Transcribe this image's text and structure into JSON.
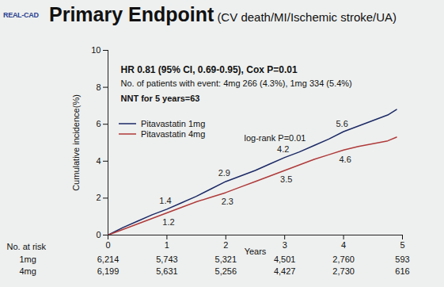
{
  "chart_data": {
    "type": "line",
    "logo": "REAL-CAD",
    "title": "Primary Endpoint",
    "subtitle": "(CV death/MI/Ischemic stroke/UA)",
    "annotations": [
      "HR 0.81 (95% CI, 0.69-0.95), Cox P=0.01",
      "No. of patients with event: 4mg 266 (4.3%), 1mg 334 (5.4%)",
      "NNT for 5 years=63",
      "log-rank P=0.01"
    ],
    "x_label": "Years",
    "y_label": "Cumulative incidence(%)",
    "xlim": [
      0,
      5
    ],
    "xticks": [
      0,
      1,
      2,
      3,
      4,
      5
    ],
    "ylim": [
      0,
      10
    ],
    "yticks": [
      0,
      2,
      4,
      6,
      8,
      10
    ],
    "legend": "left",
    "series": [
      {
        "name": "Pitavastatin 1mg",
        "color": "#1c2a66",
        "x": [
          0,
          0.25,
          0.5,
          0.75,
          1,
          1.25,
          1.5,
          1.75,
          2,
          2.25,
          2.5,
          2.75,
          3,
          3.25,
          3.5,
          3.75,
          4,
          4.25,
          4.5,
          4.75,
          4.9
        ],
        "values": [
          0,
          0.4,
          0.75,
          1.1,
          1.4,
          1.75,
          2.1,
          2.5,
          2.9,
          3.2,
          3.5,
          3.85,
          4.2,
          4.5,
          4.85,
          5.2,
          5.6,
          5.9,
          6.2,
          6.5,
          6.8
        ],
        "point_labels": {
          "x": [
            1,
            2,
            3,
            4
          ],
          "values": [
            1.4,
            2.9,
            4.2,
            5.6
          ]
        }
      },
      {
        "name": "Pitavastatin 4mg",
        "color": "#b03a3a",
        "x": [
          0,
          0.25,
          0.5,
          0.75,
          1,
          1.25,
          1.5,
          1.75,
          2,
          2.25,
          2.5,
          2.75,
          3,
          3.25,
          3.5,
          3.75,
          4,
          4.25,
          4.5,
          4.75,
          4.9
        ],
        "values": [
          0,
          0.3,
          0.6,
          0.9,
          1.2,
          1.5,
          1.8,
          2.05,
          2.3,
          2.6,
          2.9,
          3.2,
          3.5,
          3.8,
          4.1,
          4.35,
          4.6,
          4.8,
          4.95,
          5.1,
          5.3
        ],
        "point_labels": {
          "x": [
            1,
            2,
            3,
            4
          ],
          "values": [
            1.2,
            2.3,
            3.5,
            4.6
          ]
        }
      }
    ],
    "risk_table": {
      "title": "No. at risk",
      "x": [
        0,
        1,
        2,
        3,
        4,
        5
      ],
      "rows": [
        {
          "name": "1mg",
          "values": [
            "6,214",
            "5,743",
            "5,321",
            "4,501",
            "2,760",
            "593"
          ]
        },
        {
          "name": "4mg",
          "values": [
            "6,199",
            "5,631",
            "5,256",
            "4,427",
            "2,730",
            "616"
          ]
        }
      ]
    }
  }
}
